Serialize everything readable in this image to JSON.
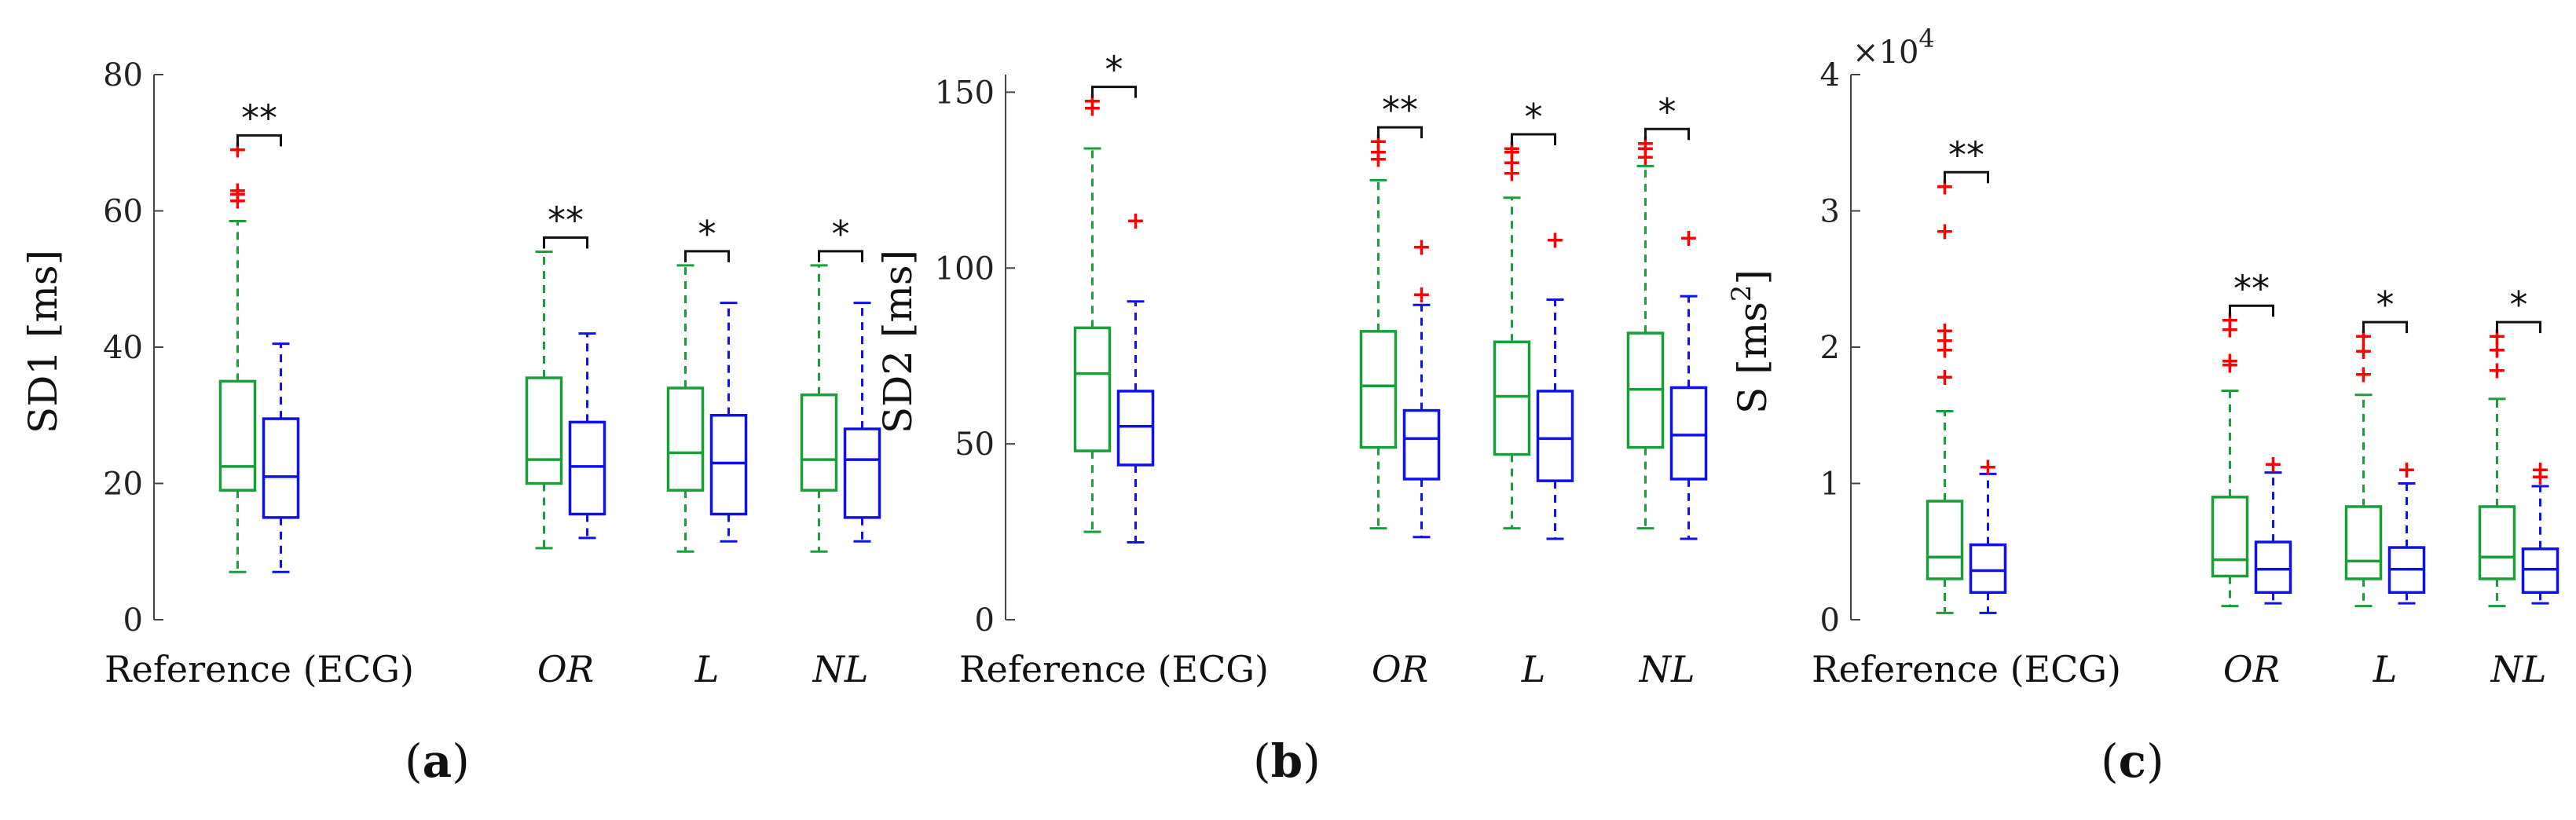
{
  "colors": {
    "group1": "#1a9e3a",
    "group2": "#1010e8",
    "outlier": "#ff0000",
    "axis": "#444444"
  },
  "panel_labels": [
    {
      "open": "(",
      "letter": "a",
      "close": ")"
    },
    {
      "open": "(",
      "letter": "b",
      "close": ")"
    },
    {
      "open": "(",
      "letter": "c",
      "close": ")"
    }
  ],
  "chart_data": [
    {
      "type": "box",
      "title": "",
      "ylabel": "SD1 [ms]",
      "ylim": [
        0,
        80
      ],
      "yticks": [
        0,
        20,
        40,
        60,
        80
      ],
      "ytick_labels": [
        "0",
        "20",
        "40",
        "60",
        "80"
      ],
      "categories": [
        "Reference (ECG)",
        "OR",
        "L",
        "NL"
      ],
      "category_styles": [
        "normal",
        "italic",
        "italic",
        "italic"
      ],
      "series": [
        {
          "name": "group1",
          "color": "#1a9e3a",
          "boxes": [
            {
              "min": 7,
              "q1": 19,
              "median": 22.5,
              "q3": 35,
              "max": 58.5,
              "outliers": [
                61.5,
                62.5,
                63,
                69
              ]
            },
            {
              "min": 10.5,
              "q1": 20,
              "median": 23.5,
              "q3": 35.5,
              "max": 54,
              "outliers": []
            },
            {
              "min": 10,
              "q1": 19,
              "median": 24.5,
              "q3": 34,
              "max": 52,
              "outliers": []
            },
            {
              "min": 10,
              "q1": 19,
              "median": 23.5,
              "q3": 33,
              "max": 52,
              "outliers": []
            }
          ]
        },
        {
          "name": "group2",
          "color": "#1010e8",
          "boxes": [
            {
              "min": 7,
              "q1": 15,
              "median": 21,
              "q3": 29.5,
              "max": 40.5,
              "outliers": []
            },
            {
              "min": 12,
              "q1": 15.5,
              "median": 22.5,
              "q3": 29,
              "max": 42,
              "outliers": []
            },
            {
              "min": 11.5,
              "q1": 15.5,
              "median": 23,
              "q3": 30,
              "max": 46.5,
              "outliers": []
            },
            {
              "min": 11.5,
              "q1": 15,
              "median": 23.5,
              "q3": 28,
              "max": 46.5,
              "outliers": []
            }
          ]
        }
      ],
      "significance": [
        "**",
        "**",
        "*",
        "*"
      ]
    },
    {
      "type": "box",
      "title": "",
      "ylabel": "SD2 [ms]",
      "ylim": [
        0,
        155
      ],
      "yticks": [
        0,
        50,
        100,
        150
      ],
      "ytick_labels": [
        "0",
        "50",
        "100",
        "150"
      ],
      "categories": [
        "Reference (ECG)",
        "OR",
        "L",
        "NL"
      ],
      "category_styles": [
        "normal",
        "italic",
        "italic",
        "italic"
      ],
      "series": [
        {
          "name": "group1",
          "color": "#1a9e3a",
          "boxes": [
            {
              "min": 25,
              "q1": 48,
              "median": 70,
              "q3": 83,
              "max": 134,
              "outliers": [
                145.5,
                147.5
              ]
            },
            {
              "min": 26,
              "q1": 49,
              "median": 66.5,
              "q3": 82,
              "max": 125,
              "outliers": [
                131,
                133,
                136
              ]
            },
            {
              "min": 26,
              "q1": 47,
              "median": 63.5,
              "q3": 79,
              "max": 120,
              "outliers": [
                127,
                130,
                133,
                134
              ]
            },
            {
              "min": 26,
              "q1": 49,
              "median": 65.5,
              "q3": 81.5,
              "max": 129,
              "outliers": [
                131.5,
                134,
                135.5
              ]
            }
          ]
        },
        {
          "name": "group2",
          "color": "#1010e8",
          "boxes": [
            {
              "min": 22,
              "q1": 44,
              "median": 55,
              "q3": 65,
              "max": 90.5,
              "outliers": [
                113.5
              ]
            },
            {
              "min": 23.5,
              "q1": 40,
              "median": 51.5,
              "q3": 59.5,
              "max": 89.5,
              "outliers": [
                92.5,
                106
              ]
            },
            {
              "min": 23,
              "q1": 39.5,
              "median": 51.5,
              "q3": 65,
              "max": 91,
              "outliers": [
                108
              ]
            },
            {
              "min": 23,
              "q1": 40,
              "median": 52.5,
              "q3": 66,
              "max": 92,
              "outliers": [
                108.5
              ]
            }
          ]
        }
      ],
      "significance": [
        "*",
        "**",
        "*",
        "*"
      ]
    },
    {
      "type": "box",
      "title": "",
      "ylabel": "S [ms²]",
      "ylabel_base": "S [ms",
      "ylabel_sup": "2",
      "ylabel_end": "]",
      "exponent_times": "×10",
      "exponent_power": "4",
      "ylim": [
        0,
        4
      ],
      "yticks": [
        0,
        1,
        2,
        3,
        4
      ],
      "ytick_labels": [
        "0",
        "1",
        "2",
        "3",
        "4"
      ],
      "categories": [
        "Reference (ECG)",
        "OR",
        "L",
        "NL"
      ],
      "category_styles": [
        "normal",
        "italic",
        "italic",
        "italic"
      ],
      "series": [
        {
          "name": "group1",
          "color": "#1a9e3a",
          "boxes": [
            {
              "min": 0.05,
              "q1": 0.3,
              "median": 0.46,
              "q3": 0.87,
              "max": 1.53,
              "outliers": [
                1.78,
                1.98,
                2.05,
                2.12,
                2.85,
                3.18
              ]
            },
            {
              "min": 0.1,
              "q1": 0.32,
              "median": 0.44,
              "q3": 0.9,
              "max": 1.68,
              "outliers": [
                1.87,
                1.9,
                2.13,
                2.2
              ]
            },
            {
              "min": 0.1,
              "q1": 0.3,
              "median": 0.43,
              "q3": 0.83,
              "max": 1.65,
              "outliers": [
                1.8,
                1.97,
                2.08
              ]
            },
            {
              "min": 0.1,
              "q1": 0.3,
              "median": 0.46,
              "q3": 0.83,
              "max": 1.62,
              "outliers": [
                1.83,
                1.98,
                2.08
              ]
            }
          ]
        },
        {
          "name": "group2",
          "color": "#1010e8",
          "boxes": [
            {
              "min": 0.05,
              "q1": 0.2,
              "median": 0.36,
              "q3": 0.55,
              "max": 1.07,
              "outliers": [
                1.12
              ]
            },
            {
              "min": 0.12,
              "q1": 0.2,
              "median": 0.37,
              "q3": 0.57,
              "max": 1.08,
              "outliers": [
                1.14
              ]
            },
            {
              "min": 0.12,
              "q1": 0.2,
              "median": 0.37,
              "q3": 0.53,
              "max": 1.0,
              "outliers": [
                1.1
              ]
            },
            {
              "min": 0.12,
              "q1": 0.2,
              "median": 0.37,
              "q3": 0.52,
              "max": 0.98,
              "outliers": [
                1.05,
                1.1
              ]
            }
          ]
        }
      ],
      "significance": [
        "**",
        "**",
        "*",
        "*"
      ]
    }
  ]
}
